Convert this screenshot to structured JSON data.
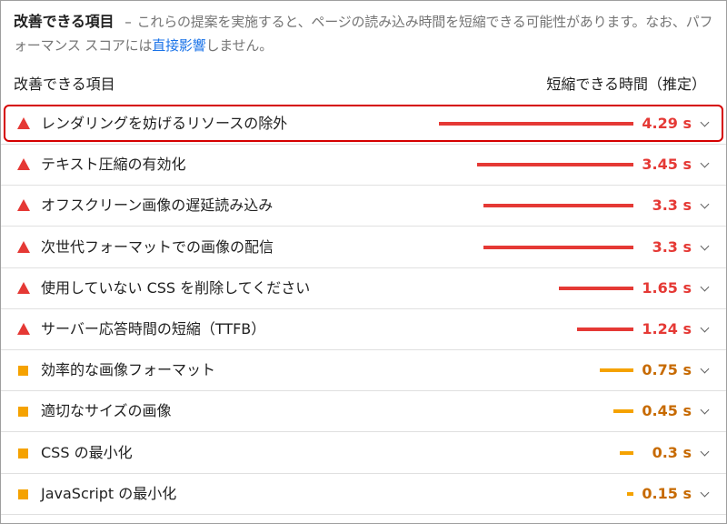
{
  "intro": {
    "title": "改善できる項目",
    "separator": "–",
    "text_before_link": "これらの提案を実施すると、ページの読み込み時間を短縮できる可能性があります。なお、パフォーマンス スコアには",
    "link": "直接影響",
    "text_after_link": "しません。"
  },
  "table": {
    "col_item": "改善できる項目",
    "col_savings": "短縮できる時間（推定）"
  },
  "colors": {
    "fail": "#e53935",
    "average": "#f5a200",
    "highlight": "#d50000"
  },
  "scale_max_seconds": 4.29,
  "rows": [
    {
      "label": "レンダリングを妨げるリソースの除外",
      "value": "4.29 s",
      "seconds": 4.29,
      "status": "fail",
      "icon": "red-triangle-icon"
    },
    {
      "label": "テキスト圧縮の有効化",
      "value": "3.45 s",
      "seconds": 3.45,
      "status": "fail",
      "icon": "red-triangle-icon"
    },
    {
      "label": "オフスクリーン画像の遅延読み込み",
      "value": "3.3 s",
      "seconds": 3.3,
      "status": "fail",
      "icon": "red-triangle-icon"
    },
    {
      "label": "次世代フォーマットでの画像の配信",
      "value": "3.3 s",
      "seconds": 3.3,
      "status": "fail",
      "icon": "red-triangle-icon"
    },
    {
      "label": "使用していない CSS を削除してください",
      "value": "1.65 s",
      "seconds": 1.65,
      "status": "fail",
      "icon": "red-triangle-icon"
    },
    {
      "label": "サーバー応答時間の短縮（TTFB）",
      "value": "1.24 s",
      "seconds": 1.24,
      "status": "fail",
      "icon": "red-triangle-icon"
    },
    {
      "label": "効率的な画像フォーマット",
      "value": "0.75 s",
      "seconds": 0.75,
      "status": "avg",
      "icon": "orange-square-icon"
    },
    {
      "label": "適切なサイズの画像",
      "value": "0.45 s",
      "seconds": 0.45,
      "status": "avg",
      "icon": "orange-square-icon"
    },
    {
      "label": "CSS の最小化",
      "value": "0.3 s",
      "seconds": 0.3,
      "status": "avg",
      "icon": "orange-square-icon"
    },
    {
      "label": "JavaScript の最小化",
      "value": "0.15 s",
      "seconds": 0.15,
      "status": "avg",
      "icon": "orange-square-icon"
    }
  ]
}
